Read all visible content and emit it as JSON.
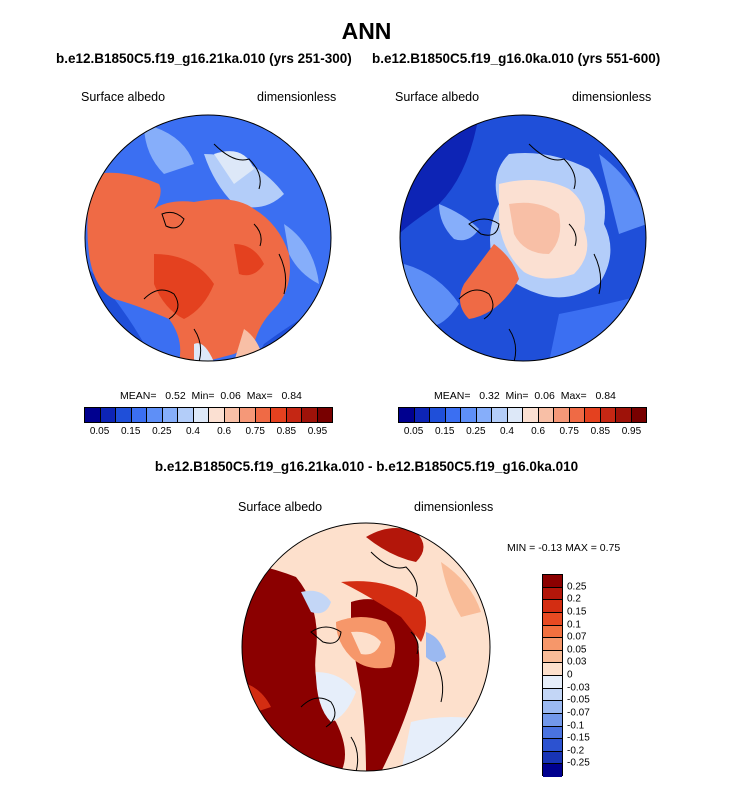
{
  "title": "ANN",
  "panel_left": {
    "case": "b.e12.B1850C5.f19_g16.21ka.010 (yrs 251-300)",
    "variable": "Surface albedo",
    "units": "dimensionless",
    "stats": {
      "mean_label": "MEAN=",
      "mean": "0.52",
      "min_label": "Min=",
      "min": "0.06",
      "max_label": "Max=",
      "max": "0.84"
    }
  },
  "panel_right": {
    "case": "b.e12.B1850C5.f19_g16.0ka.010 (yrs 551-600)",
    "variable": "Surface albedo",
    "units": "dimensionless",
    "stats": {
      "mean_label": "MEAN=",
      "mean": "0.32",
      "min_label": "Min=",
      "min": "0.06",
      "max_label": "Max=",
      "max": "0.84"
    }
  },
  "panel_diff": {
    "case": "b.e12.B1850C5.f19_g16.21ka.010 - b.e12.B1850C5.f19_g16.0ka.010",
    "variable": "Surface albedo",
    "units": "dimensionless",
    "stats_text": "MIN = -0.13 MAX = 0.75"
  },
  "colorbar_albedo": {
    "colors": [
      "#00008f",
      "#0d24b5",
      "#1f4fd9",
      "#3b6ff2",
      "#5e8ff7",
      "#86aefa",
      "#b3cdf9",
      "#dde8f8",
      "#fbe0d2",
      "#f8bfa6",
      "#f59878",
      "#ef6a45",
      "#e4411f",
      "#c52714",
      "#9e1209",
      "#780000"
    ],
    "ticks": [
      "0.05",
      "0.15",
      "0.25",
      "0.4",
      "0.6",
      "0.75",
      "0.85",
      "0.95"
    ]
  },
  "colorbar_diff": {
    "colors": [
      "#8b0000",
      "#b3160a",
      "#d32d12",
      "#e84a22",
      "#f2703f",
      "#f6976a",
      "#f9bc98",
      "#fde0cc",
      "#e6eefa",
      "#c3d6f6",
      "#9bb9f1",
      "#7298ea",
      "#4a73e0",
      "#2c52d0",
      "#1834b5",
      "#00008f"
    ],
    "ticks": [
      "0.25",
      "0.2",
      "0.15",
      "0.1",
      "0.07",
      "0.05",
      "0.03",
      "0",
      "-0.03",
      "-0.05",
      "-0.07",
      "-0.1",
      "-0.15",
      "-0.2",
      "-0.25"
    ]
  }
}
